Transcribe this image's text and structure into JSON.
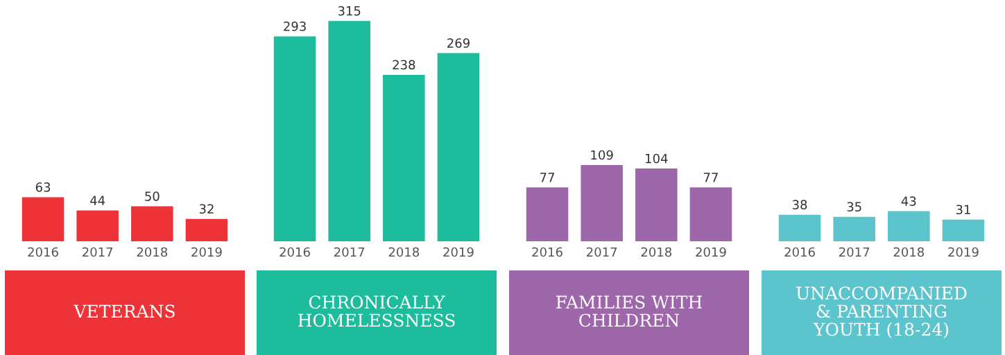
{
  "chart_data": [
    {
      "type": "bar",
      "title": "VETERANS",
      "categories": [
        "2016",
        "2017",
        "2018",
        "2019"
      ],
      "values": [
        63,
        44,
        50,
        32
      ],
      "color": "#ee3338",
      "data_labels": true
    },
    {
      "type": "bar",
      "title": "CHRONICALLY\nHOMELESSNESS",
      "categories": [
        "2016",
        "2017",
        "2018",
        "2019"
      ],
      "values": [
        293,
        315,
        238,
        269
      ],
      "color": "#1dbc9c",
      "data_labels": true
    },
    {
      "type": "bar",
      "title": "FAMILIES WITH\nCHILDREN",
      "categories": [
        "2016",
        "2017",
        "2018",
        "2019"
      ],
      "values": [
        77,
        109,
        104,
        77
      ],
      "color": "#9e67aa",
      "data_labels": true
    },
    {
      "type": "bar",
      "title": "UNACCOMPANIED\n& PARENTING\nYOUTH (18-24)",
      "categories": [
        "2016",
        "2017",
        "2018",
        "2019"
      ],
      "values": [
        38,
        35,
        43,
        31
      ],
      "color": "#5bc4cc",
      "data_labels": true
    }
  ]
}
